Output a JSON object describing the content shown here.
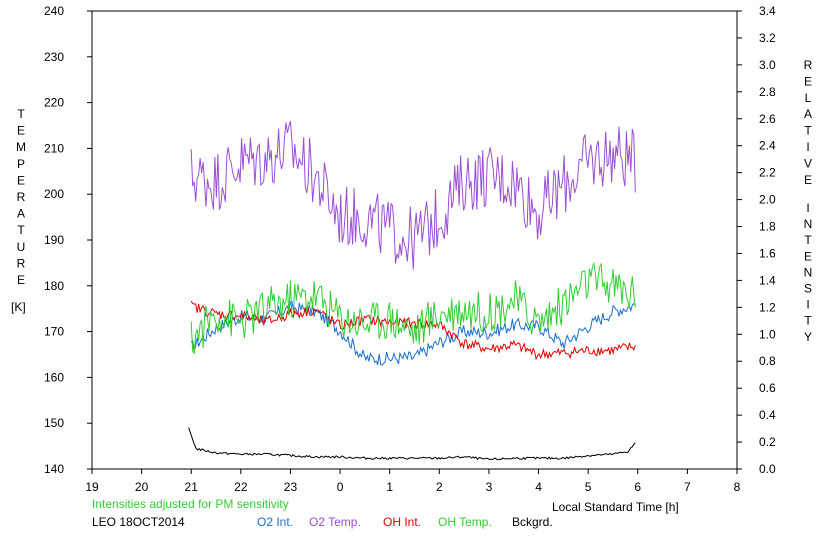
{
  "chart_data": {
    "type": "line",
    "left_axis": {
      "label_letters": [
        "T",
        "E",
        "M",
        "P",
        "E",
        "R",
        "A",
        "T",
        "U",
        "R",
        "E"
      ],
      "unit": "[K]",
      "range": [
        140,
        240
      ],
      "ticks": [
        "140",
        "150",
        "160",
        "170",
        "180",
        "190",
        "200",
        "210",
        "220",
        "230",
        "240"
      ]
    },
    "right_axis": {
      "label_word1": [
        "R",
        "E",
        "L",
        "A",
        "T",
        "I",
        "V",
        "E"
      ],
      "label_word2": [
        "I",
        "N",
        "T",
        "E",
        "N",
        "S",
        "I",
        "T",
        "Y"
      ],
      "range": [
        0,
        3.4
      ],
      "ticks": [
        "0.0",
        "0.2",
        "0.4",
        "0.6",
        "0.8",
        "1.0",
        "1.2",
        "1.4",
        "1.6",
        "1.8",
        "2.0",
        "2.2",
        "2.4",
        "2.6",
        "2.8",
        "3.0",
        "3.2",
        "3.4"
      ]
    },
    "x_axis": {
      "label": "Local Standard Time [h]",
      "range_hours": [
        19,
        32
      ],
      "tick_labels": [
        "19",
        "20",
        "21",
        "22",
        "23",
        "0",
        "1",
        "2",
        "3",
        "4",
        "5",
        "6",
        "7",
        "8"
      ]
    },
    "note": "Intensities adjusted for PM sensitivity",
    "station_label": "LEO 18OCT2014",
    "series": [
      {
        "name": "O2 Int.",
        "axis": "right",
        "color": "#1a6fd0",
        "x": [
          21.0,
          21.5,
          22.0,
          22.5,
          23.0,
          23.5,
          24.0,
          24.5,
          25.0,
          25.5,
          26.0,
          26.5,
          27.0,
          27.5,
          28.0,
          28.5,
          29.0,
          29.5,
          29.95
        ],
        "y": [
          0.9,
          1.05,
          1.13,
          1.12,
          1.2,
          1.17,
          1.03,
          0.82,
          0.82,
          0.83,
          0.94,
          1.02,
          1.01,
          1.07,
          1.06,
          0.93,
          1.06,
          1.17,
          1.22
        ]
      },
      {
        "name": "O2 Temp.",
        "axis": "left",
        "color": "#9a4fd8",
        "x": [
          21.0,
          21.5,
          22.0,
          22.5,
          23.0,
          23.5,
          24.0,
          24.5,
          25.0,
          25.5,
          26.0,
          26.5,
          27.0,
          27.5,
          28.0,
          28.5,
          29.0,
          29.5,
          29.95
        ],
        "y": [
          204,
          203,
          207,
          208,
          210,
          204,
          195,
          195,
          192,
          190,
          195,
          203,
          204,
          203,
          196,
          202,
          207,
          209,
          207
        ]
      },
      {
        "name": "OH Int.",
        "axis": "right",
        "color": "#e00000",
        "x": [
          21.0,
          21.5,
          22.0,
          22.5,
          23.0,
          23.5,
          24.0,
          24.5,
          25.0,
          25.5,
          26.0,
          26.5,
          27.0,
          27.5,
          28.0,
          28.5,
          29.0,
          29.5,
          29.95
        ],
        "y": [
          1.21,
          1.15,
          1.14,
          1.09,
          1.15,
          1.18,
          1.06,
          1.11,
          1.09,
          1.08,
          1.07,
          0.93,
          0.89,
          0.92,
          0.85,
          0.86,
          0.88,
          0.88,
          0.91
        ]
      },
      {
        "name": "OH Temp.",
        "axis": "left",
        "color": "#33cc33",
        "x": [
          21.0,
          21.5,
          22.0,
          22.5,
          23.0,
          23.5,
          24.0,
          24.5,
          25.0,
          25.5,
          26.0,
          26.5,
          27.0,
          27.5,
          28.0,
          28.5,
          29.0,
          29.5,
          29.95
        ],
        "y": [
          168,
          174,
          172,
          175,
          177,
          178,
          173,
          172,
          173,
          170,
          174,
          175,
          174,
          177,
          172,
          176,
          181,
          180,
          178
        ]
      },
      {
        "name": "Bckgrd.",
        "axis": "right",
        "color": "#000000",
        "x": [
          20.95,
          21.1,
          21.5,
          22.0,
          22.5,
          23.0,
          23.5,
          24.0,
          24.5,
          25.0,
          25.5,
          26.0,
          26.5,
          27.0,
          27.5,
          28.0,
          28.5,
          29.0,
          29.5,
          29.8,
          29.95
        ],
        "y": [
          0.3,
          0.15,
          0.12,
          0.11,
          0.11,
          0.1,
          0.09,
          0.09,
          0.08,
          0.08,
          0.08,
          0.08,
          0.09,
          0.07,
          0.08,
          0.08,
          0.08,
          0.1,
          0.11,
          0.13,
          0.19
        ]
      }
    ]
  }
}
